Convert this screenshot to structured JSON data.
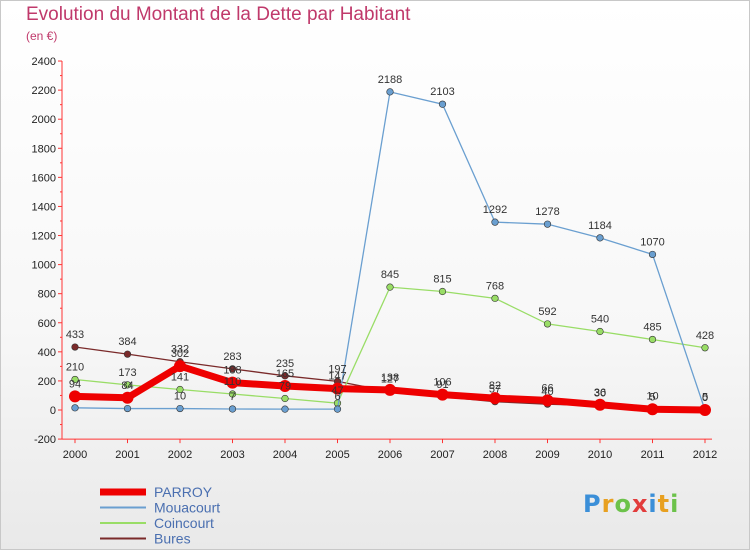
{
  "title": "Evolution du Montant de la Dette par Habitant",
  "subtitle": "(en €)",
  "logo": "Proxiti",
  "chart_data": {
    "type": "line",
    "x": [
      "2000",
      "2001",
      "2002",
      "2003",
      "2004",
      "2005",
      "2006",
      "2007",
      "2008",
      "2009",
      "2010",
      "2011",
      "2012"
    ],
    "ylim": [
      -200,
      2400
    ],
    "yticks": [
      -200,
      0,
      200,
      400,
      600,
      800,
      1000,
      1200,
      1400,
      1600,
      1800,
      2000,
      2200,
      2400
    ],
    "grid": false,
    "legend_position": "bottom-left",
    "series": [
      {
        "name": "Bures",
        "color": "#7a2a2a",
        "width": 1,
        "values": [
          433,
          384,
          332,
          283,
          235,
          197,
          127,
          91,
          57,
          40,
          30,
          10,
          5
        ],
        "labels": [
          "433",
          "384",
          "332",
          "283",
          "235",
          "197",
          "127",
          "91",
          "57",
          "40",
          "30",
          "10",
          "5"
        ]
      },
      {
        "name": "Coincourt",
        "color": "#99dd66",
        "width": 1,
        "values": [
          210,
          173,
          141,
          110,
          79,
          47,
          845,
          815,
          768,
          592,
          540,
          485,
          428
        ],
        "labels": [
          "210",
          "173",
          "141",
          "110",
          "79",
          "47",
          "845",
          "815",
          "768",
          "592",
          "540",
          "485",
          "428"
        ]
      },
      {
        "name": "Mouacourt",
        "color": "#6a9fd0",
        "width": 1,
        "values": [
          15,
          10,
          10,
          7,
          6,
          6,
          2188,
          2103,
          1292,
          1278,
          1184,
          1070,
          0
        ],
        "labels": [
          "",
          "",
          "10",
          "7",
          "",
          "6",
          "2188",
          "2103",
          "1292",
          "1278",
          "1184",
          "1070",
          "0"
        ]
      },
      {
        "name": "PARROY",
        "color": "#ee0000",
        "width": 7,
        "values": [
          94,
          84,
          302,
          188,
          165,
          147,
          138,
          106,
          82,
          66,
          36,
          5,
          0
        ],
        "labels": [
          "94",
          "84",
          "302",
          "188",
          "165",
          "147",
          "138",
          "106",
          "82",
          "66",
          "36",
          "5",
          "0"
        ]
      }
    ],
    "legend_order": [
      "PARROY",
      "Mouacourt",
      "Coincourt",
      "Bures"
    ]
  }
}
